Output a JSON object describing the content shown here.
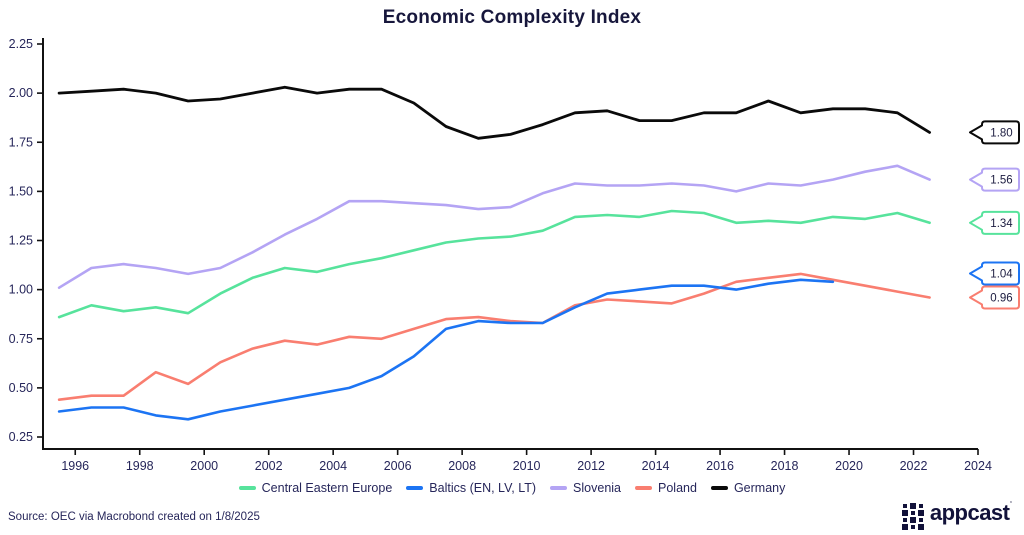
{
  "title": "Economic Complexity Index",
  "source": "Source: OEC via Macrobond created on 1/8/2025",
  "logo": {
    "text": "appcast",
    "tm": "™"
  },
  "colors": {
    "text": "#26265a",
    "axis": "#111111",
    "callout_text": "#1c1c40",
    "background": "#ffffff"
  },
  "chart_data": {
    "type": "line",
    "title": "Economic Complexity Index",
    "xlabel": "",
    "ylabel": "",
    "xlim": [
      1995,
      2024
    ],
    "ylim": [
      0.25,
      2.25
    ],
    "x_ticks": [
      1996,
      1998,
      2000,
      2002,
      2004,
      2006,
      2008,
      2010,
      2012,
      2014,
      2016,
      2018,
      2020,
      2022,
      2024
    ],
    "y_ticks": [
      0.25,
      0.5,
      0.75,
      1.0,
      1.25,
      1.5,
      1.75,
      2.0,
      2.25
    ],
    "grid": false,
    "legend_position": "bottom",
    "x_start_year": 1995,
    "x_point_offset": 0.5,
    "draw_order": [
      2,
      3,
      0,
      1,
      4
    ],
    "series": [
      {
        "name": "Central Eastern Europe",
        "color": "#57e39c",
        "end_label": "1.34",
        "values": [
          0.86,
          0.92,
          0.89,
          0.91,
          0.88,
          0.98,
          1.06,
          1.11,
          1.09,
          1.13,
          1.16,
          1.2,
          1.24,
          1.26,
          1.27,
          1.3,
          1.37,
          1.38,
          1.37,
          1.4,
          1.39,
          1.34,
          1.35,
          1.34,
          1.37,
          1.36,
          1.39,
          1.34
        ]
      },
      {
        "name": "Baltics (EN, LV, LT)",
        "color": "#1c74f3",
        "end_label": "1.04",
        "values": [
          0.38,
          0.4,
          0.4,
          0.36,
          0.34,
          0.38,
          0.41,
          0.44,
          0.47,
          0.5,
          0.56,
          0.66,
          0.8,
          0.84,
          0.83,
          0.83,
          0.91,
          0.98,
          1.0,
          1.02,
          1.02,
          1.0,
          1.03,
          1.05,
          1.04
        ]
      },
      {
        "name": "Slovenia",
        "color": "#b4a4f4",
        "end_label": "1.56",
        "values": [
          1.01,
          1.11,
          1.13,
          1.11,
          1.08,
          1.11,
          1.19,
          1.28,
          1.36,
          1.45,
          1.45,
          1.44,
          1.43,
          1.41,
          1.42,
          1.49,
          1.54,
          1.53,
          1.53,
          1.54,
          1.53,
          1.5,
          1.54,
          1.53,
          1.56,
          1.6,
          1.63,
          1.56
        ]
      },
      {
        "name": "Poland",
        "color": "#f97e70",
        "end_label": "0.96",
        "values": [
          0.44,
          0.46,
          0.46,
          0.58,
          0.52,
          0.63,
          0.7,
          0.74,
          0.72,
          0.76,
          0.75,
          0.8,
          0.85,
          0.86,
          0.84,
          0.83,
          0.92,
          0.95,
          0.94,
          0.93,
          0.98,
          1.04,
          1.06,
          1.08,
          1.05,
          1.02,
          0.99,
          0.96
        ]
      },
      {
        "name": "Germany",
        "color": "#0a0a0a",
        "end_label": "1.80",
        "values": [
          2.0,
          2.01,
          2.02,
          2.0,
          1.96,
          1.97,
          2.0,
          2.03,
          2.0,
          2.02,
          2.02,
          1.95,
          1.83,
          1.77,
          1.79,
          1.84,
          1.9,
          1.91,
          1.86,
          1.86,
          1.9,
          1.9,
          1.96,
          1.9,
          1.92,
          1.92,
          1.9,
          1.8
        ]
      }
    ]
  }
}
